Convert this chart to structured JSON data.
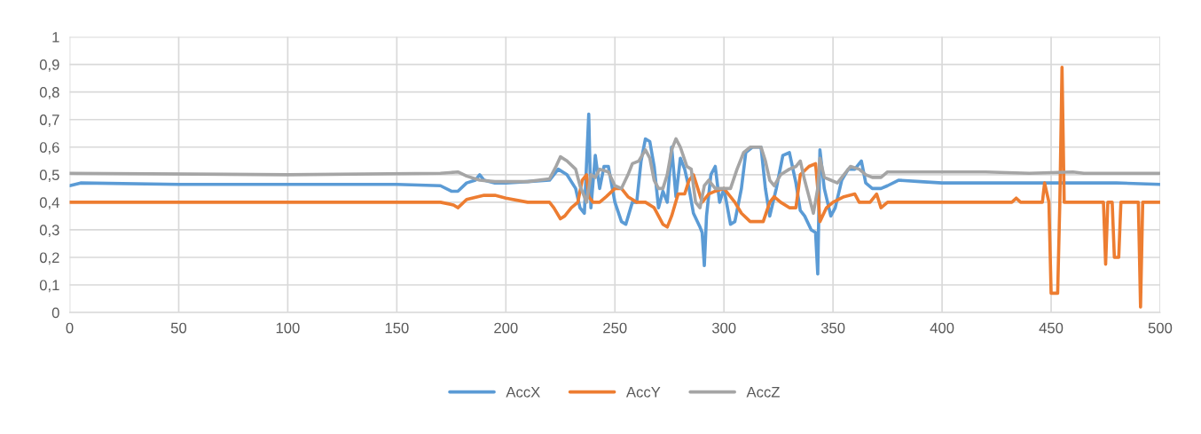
{
  "chart_data": {
    "type": "line",
    "xlim": [
      0,
      500
    ],
    "ylim": [
      0,
      1
    ],
    "xticks": [
      0,
      50,
      100,
      150,
      200,
      250,
      300,
      350,
      400,
      450,
      500
    ],
    "yticks": [
      0,
      {
        "value": 0.1,
        "label": "0,1"
      },
      {
        "value": 0.2,
        "label": "0,2"
      },
      {
        "value": 0.3,
        "label": "0,3"
      },
      {
        "value": 0.4,
        "label": "0,4"
      },
      {
        "value": 0.5,
        "label": "0,5"
      },
      {
        "value": 0.6,
        "label": "0,6"
      },
      {
        "value": 0.7,
        "label": "0,7"
      },
      {
        "value": 0.8,
        "label": "0,8"
      },
      {
        "value": 0.9,
        "label": "0,9"
      },
      1
    ],
    "grid": true,
    "legend": "bottom",
    "marker": "none",
    "line_style": "solid",
    "series": [
      {
        "name": "AccX",
        "color": "#5b9bd5",
        "x": [
          0,
          5,
          50,
          100,
          150,
          170,
          175,
          178,
          182,
          186,
          188,
          190,
          195,
          200,
          210,
          220,
          224,
          228,
          232,
          234,
          236,
          238,
          239,
          241,
          243,
          245,
          247,
          250,
          253,
          255,
          258,
          260,
          262,
          264,
          266,
          268,
          270,
          272,
          274,
          276,
          278,
          280,
          282,
          284,
          286,
          289,
          290,
          291,
          292,
          294,
          296,
          298,
          300,
          303,
          305,
          308,
          310,
          313,
          317,
          319,
          321,
          324,
          327,
          330,
          333,
          335,
          337,
          340,
          342,
          343,
          344,
          346,
          349,
          351,
          354,
          357,
          360,
          363,
          365,
          368,
          372,
          375,
          380,
          390,
          400,
          420,
          440,
          460,
          480,
          500
        ],
        "values": [
          0.46,
          0.47,
          0.465,
          0.465,
          0.465,
          0.46,
          0.44,
          0.44,
          0.47,
          0.48,
          0.5,
          0.48,
          0.47,
          0.47,
          0.475,
          0.48,
          0.52,
          0.5,
          0.45,
          0.38,
          0.36,
          0.72,
          0.38,
          0.57,
          0.45,
          0.53,
          0.53,
          0.4,
          0.33,
          0.32,
          0.4,
          0.4,
          0.55,
          0.63,
          0.62,
          0.53,
          0.38,
          0.44,
          0.4,
          0.6,
          0.42,
          0.56,
          0.52,
          0.45,
          0.36,
          0.31,
          0.29,
          0.17,
          0.35,
          0.5,
          0.53,
          0.4,
          0.45,
          0.32,
          0.33,
          0.45,
          0.58,
          0.6,
          0.6,
          0.45,
          0.35,
          0.45,
          0.57,
          0.58,
          0.47,
          0.37,
          0.35,
          0.3,
          0.29,
          0.14,
          0.59,
          0.45,
          0.35,
          0.38,
          0.48,
          0.52,
          0.52,
          0.55,
          0.47,
          0.45,
          0.45,
          0.46,
          0.48,
          0.475,
          0.47,
          0.47,
          0.47,
          0.47,
          0.47,
          0.465
        ]
      },
      {
        "name": "AccY",
        "color": "#ed7d31",
        "x": [
          0,
          170,
          176,
          178,
          182,
          190,
          195,
          200,
          210,
          220,
          222,
          225,
          227,
          230,
          233,
          235,
          237,
          238,
          240,
          243,
          246,
          250,
          253,
          256,
          260,
          264,
          268,
          272,
          274,
          276,
          279,
          282,
          284,
          286,
          288,
          290,
          293,
          296,
          300,
          305,
          308,
          312,
          318,
          321,
          323,
          326,
          330,
          333,
          335,
          339,
          342,
          343,
          344,
          347,
          350,
          355,
          360,
          362,
          367,
          370,
          372,
          375,
          400,
          432,
          434,
          436,
          446,
          447,
          449,
          450,
          453,
          454,
          455,
          456,
          474,
          475,
          476,
          478,
          479,
          481,
          482,
          490,
          491,
          492,
          500
        ],
        "values": [
          0.4,
          0.4,
          0.39,
          0.38,
          0.41,
          0.425,
          0.425,
          0.415,
          0.4,
          0.4,
          0.38,
          0.34,
          0.35,
          0.38,
          0.4,
          0.48,
          0.5,
          0.42,
          0.4,
          0.4,
          0.42,
          0.45,
          0.45,
          0.42,
          0.4,
          0.4,
          0.38,
          0.32,
          0.31,
          0.35,
          0.43,
          0.43,
          0.48,
          0.5,
          0.45,
          0.4,
          0.43,
          0.44,
          0.45,
          0.4,
          0.36,
          0.33,
          0.33,
          0.4,
          0.42,
          0.4,
          0.38,
          0.38,
          0.5,
          0.53,
          0.54,
          0.45,
          0.33,
          0.38,
          0.4,
          0.42,
          0.43,
          0.4,
          0.4,
          0.43,
          0.38,
          0.4,
          0.4,
          0.4,
          0.415,
          0.4,
          0.4,
          0.47,
          0.4,
          0.07,
          0.07,
          0.4,
          0.89,
          0.4,
          0.4,
          0.175,
          0.4,
          0.4,
          0.2,
          0.2,
          0.4,
          0.4,
          0.02,
          0.4,
          0.4
        ]
      },
      {
        "name": "AccZ",
        "color": "#a5a5a5",
        "x": [
          0,
          100,
          170,
          178,
          182,
          188,
          195,
          210,
          220,
          223,
          225,
          228,
          232,
          234,
          236,
          237,
          239,
          241,
          243,
          247,
          250,
          253,
          256,
          258,
          261,
          264,
          266,
          268,
          270,
          272,
          274,
          276,
          278,
          280,
          283,
          285,
          287,
          289,
          291,
          293,
          296,
          300,
          303,
          306,
          309,
          312,
          317,
          319,
          321,
          323,
          326,
          330,
          333,
          335,
          337,
          339,
          341,
          343,
          344,
          346,
          349,
          352,
          355,
          358,
          362,
          365,
          368,
          372,
          375,
          380,
          400,
          420,
          440,
          460,
          465,
          500
        ],
        "values": [
          0.505,
          0.5,
          0.505,
          0.51,
          0.495,
          0.48,
          0.475,
          0.475,
          0.485,
          0.53,
          0.565,
          0.55,
          0.52,
          0.46,
          0.42,
          0.4,
          0.5,
          0.49,
          0.52,
          0.51,
          0.46,
          0.45,
          0.5,
          0.54,
          0.55,
          0.59,
          0.56,
          0.48,
          0.45,
          0.45,
          0.5,
          0.59,
          0.63,
          0.6,
          0.53,
          0.52,
          0.4,
          0.38,
          0.46,
          0.48,
          0.45,
          0.45,
          0.45,
          0.52,
          0.58,
          0.6,
          0.6,
          0.55,
          0.48,
          0.46,
          0.5,
          0.52,
          0.53,
          0.55,
          0.48,
          0.42,
          0.36,
          0.45,
          0.56,
          0.49,
          0.48,
          0.47,
          0.5,
          0.53,
          0.52,
          0.5,
          0.49,
          0.49,
          0.51,
          0.51,
          0.51,
          0.51,
          0.505,
          0.51,
          0.505,
          0.505
        ]
      }
    ]
  }
}
